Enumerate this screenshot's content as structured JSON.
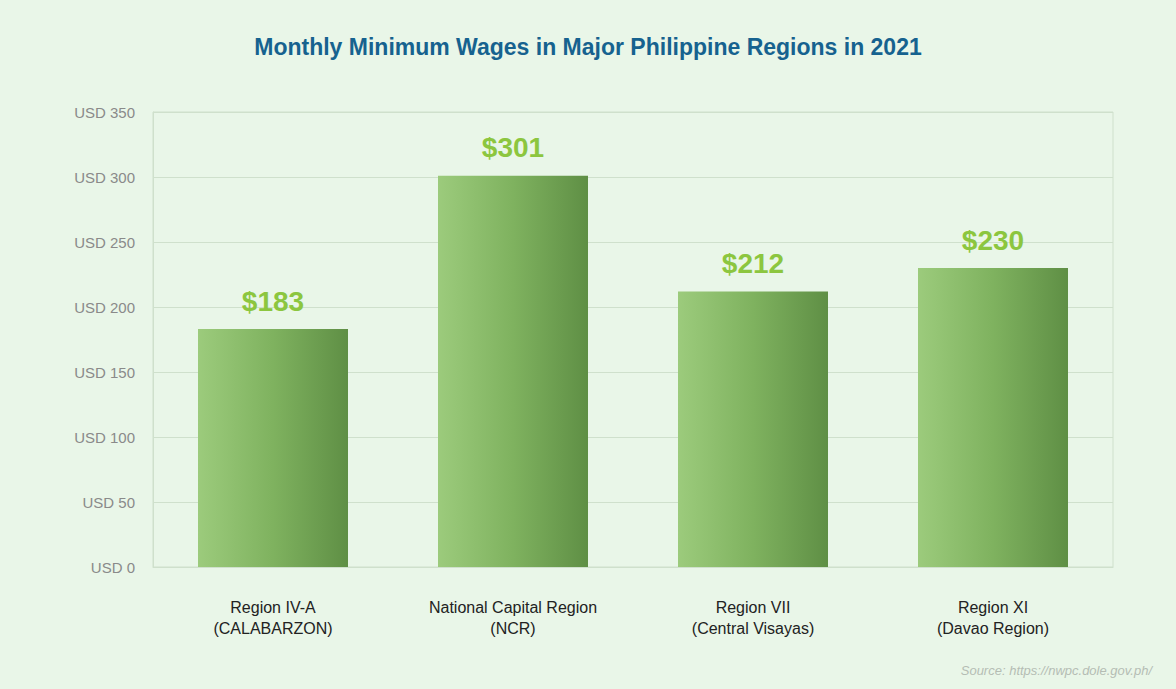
{
  "chart_data": {
    "type": "bar",
    "title": "Monthly Minimum Wages in Major Philippine Regions in 2021",
    "categories": [
      "Region IV-A (CALABARZON)",
      "National Capital Region (NCR)",
      "Region VII (Central Visayas)",
      "Region XI (Davao Region)"
    ],
    "values": [
      183,
      301,
      212,
      230
    ],
    "value_labels": [
      "$183",
      "$301",
      "$212",
      "$230"
    ],
    "color": "#7fb25f",
    "ylim": [
      0,
      350
    ],
    "yticks": [
      {
        "value": 0,
        "label": "USD 0"
      },
      {
        "value": 50,
        "label": "USD 50"
      },
      {
        "value": 100,
        "label": "USD 100"
      },
      {
        "value": 150,
        "label": "USD 150"
      },
      {
        "value": 200,
        "label": "USD 200"
      },
      {
        "value": 250,
        "label": "USD 250"
      },
      {
        "value": 300,
        "label": "USD 300"
      },
      {
        "value": 350,
        "label": "USD 350"
      }
    ],
    "grid": true,
    "data_labels": true,
    "source": "Source: https://nwpc.dole.gov.ph/"
  }
}
